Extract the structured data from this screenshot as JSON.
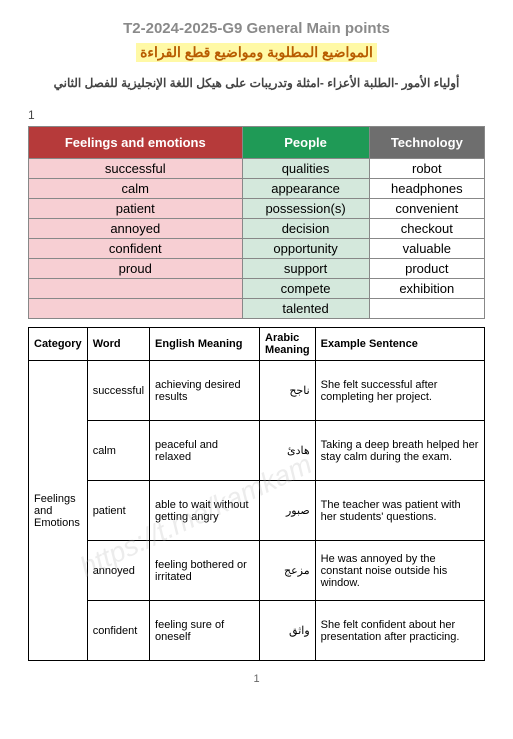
{
  "header": {
    "main_title": "T2-2024-2025-G9 General Main points",
    "ar_title": "المواضيع المطلوبة ومواضيع قطع القراءة",
    "subtitle": "أولياء الأمور -الطلبة الأعزاء -امثلة وتدريبات على هيكل اللغة الإنجليزية للفصل الثاني",
    "top_page_mark": "1"
  },
  "top_table": {
    "headers": [
      "Feelings and emotions",
      "People",
      "Technology"
    ],
    "header_colors": [
      "#b63a3a",
      "#1f9a56",
      "#6e6e6e"
    ],
    "col_cell_colors": [
      "#f7cfd3",
      "#d4e8dc",
      "#ffffff"
    ],
    "rows": [
      [
        "successful",
        "qualities",
        "robot"
      ],
      [
        "calm",
        "appearance",
        "headphones"
      ],
      [
        "patient",
        "possession(s)",
        "convenient"
      ],
      [
        "annoyed",
        "decision",
        "checkout"
      ],
      [
        "confident",
        "opportunity",
        "valuable"
      ],
      [
        "proud",
        "support",
        "product"
      ],
      [
        "",
        "compete",
        "exhibition"
      ],
      [
        "",
        "talented",
        ""
      ]
    ]
  },
  "vocab_table": {
    "headers": [
      "Category",
      "Word",
      "English Meaning",
      "Arabic Meaning",
      "Example Sentence"
    ],
    "category_label": "Feelings and Emotions",
    "rows": [
      {
        "word": "successful",
        "english": "achieving desired results",
        "arabic": "ناجح",
        "example": "She felt successful after completing her project."
      },
      {
        "word": "calm",
        "english": "peaceful and relaxed",
        "arabic": "هادئ",
        "example": "Taking a deep breath helped her stay calm during the exam."
      },
      {
        "word": "patient",
        "english": "able to wait without getting angry",
        "arabic": "صبور",
        "example": "The teacher was patient with her students' questions."
      },
      {
        "word": "annoyed",
        "english": "feeling bothered or irritated",
        "arabic": "مزعج",
        "example": "He was annoyed by the constant noise outside his window."
      },
      {
        "word": "confident",
        "english": "feeling sure of oneself",
        "arabic": "واثق",
        "example": "She felt confident about her presentation after practicing."
      }
    ]
  },
  "footer": {
    "page_number": "1"
  },
  "watermark": "https://t.me/kamkam"
}
